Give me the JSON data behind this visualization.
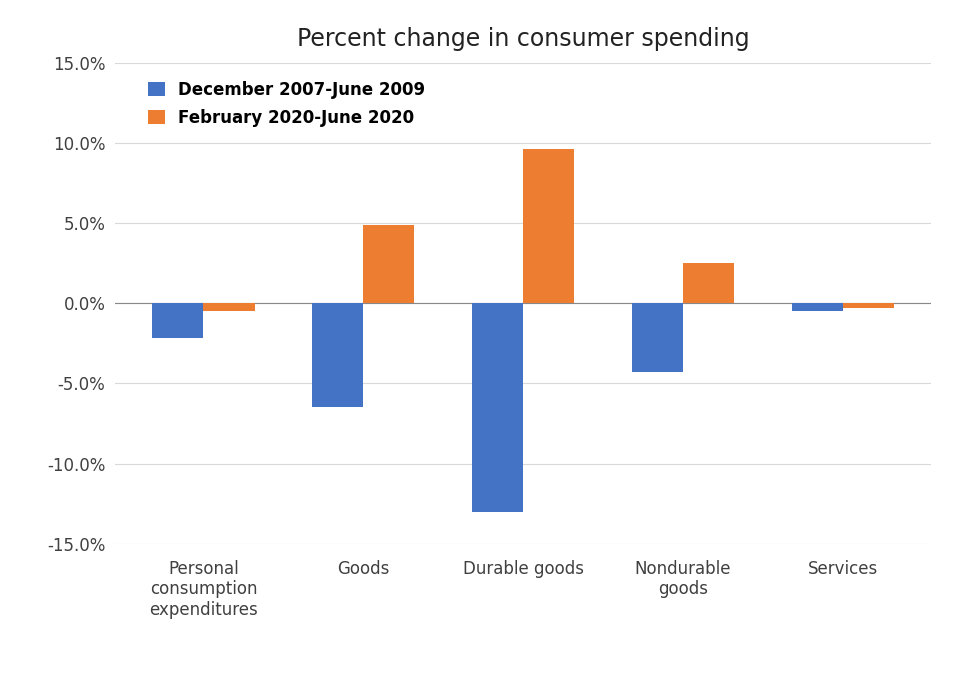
{
  "title": "Percent change in consumer spending",
  "categories": [
    "Personal\nconsumption\nexpenditures",
    "Goods",
    "Durable goods",
    "Nondurable\ngoods",
    "Services"
  ],
  "series1_label": "December 2007-June 2009",
  "series2_label": "February 2020-June 2020",
  "series1_values": [
    -2.2,
    -6.5,
    -13.0,
    -4.3,
    -0.5
  ],
  "series2_values": [
    -0.5,
    4.9,
    9.6,
    2.5,
    -0.3
  ],
  "series1_color": "#4472C4",
  "series2_color": "#ED7D31",
  "ylim": [
    -15.0,
    15.0
  ],
  "yticks": [
    -15.0,
    -10.0,
    -5.0,
    0.0,
    5.0,
    10.0,
    15.0
  ],
  "background_color": "#ffffff",
  "grid_color": "#d9d9d9",
  "title_fontsize": 17,
  "legend_fontsize": 12,
  "tick_fontsize": 12,
  "bar_width": 0.32
}
